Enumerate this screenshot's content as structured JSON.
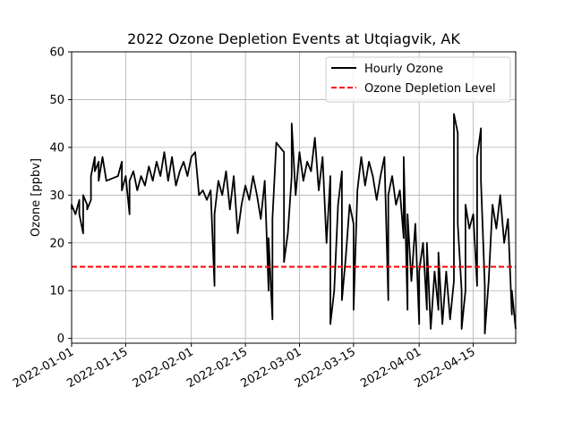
{
  "chart_data": {
    "type": "line",
    "title": "2022 Ozone Depletion Events at Utqiagvik, AK",
    "xlabel": "",
    "ylabel": "Ozone [ppbv]",
    "xlim": [
      "2022-01-01",
      "2022-04-26"
    ],
    "ylim": [
      -1,
      60
    ],
    "x_ticks": [
      "2022-01-01",
      "2022-01-15",
      "2022-02-01",
      "2022-02-15",
      "2022-03-01",
      "2022-03-15",
      "2022-04-01",
      "2022-04-15"
    ],
    "y_ticks": [
      0,
      10,
      20,
      30,
      40,
      50,
      60
    ],
    "grid": true,
    "legend_position": "top-right",
    "series": [
      {
        "name": "Hourly Ozone",
        "style": "solid",
        "color": "#000000",
        "points": [
          [
            "2022-01-01",
            27
          ],
          [
            "2022-01-01",
            28
          ],
          [
            "2022-01-02",
            26
          ],
          [
            "2022-01-03",
            29
          ],
          [
            "2022-01-03",
            26
          ],
          [
            "2022-01-04",
            22
          ],
          [
            "2022-01-04",
            30
          ],
          [
            "2022-01-05",
            28
          ],
          [
            "2022-01-05",
            27
          ],
          [
            "2022-01-06",
            29
          ],
          [
            "2022-01-06",
            34
          ],
          [
            "2022-01-07",
            38
          ],
          [
            "2022-01-07",
            35
          ],
          [
            "2022-01-08",
            37
          ],
          [
            "2022-01-08",
            33
          ],
          [
            "2022-01-09",
            38
          ],
          [
            "2022-01-10",
            33
          ],
          [
            "2022-01-13",
            34
          ],
          [
            "2022-01-14",
            37
          ],
          [
            "2022-01-14",
            31
          ],
          [
            "2022-01-15",
            34
          ],
          [
            "2022-01-16",
            26
          ],
          [
            "2022-01-16",
            33
          ],
          [
            "2022-01-17",
            35
          ],
          [
            "2022-01-18",
            31
          ],
          [
            "2022-01-19",
            34
          ],
          [
            "2022-01-20",
            32
          ],
          [
            "2022-01-21",
            36
          ],
          [
            "2022-01-22",
            33
          ],
          [
            "2022-01-23",
            37
          ],
          [
            "2022-01-24",
            34
          ],
          [
            "2022-01-25",
            39
          ],
          [
            "2022-01-26",
            33
          ],
          [
            "2022-01-27",
            38
          ],
          [
            "2022-01-28",
            32
          ],
          [
            "2022-01-29",
            35
          ],
          [
            "2022-01-30",
            37
          ],
          [
            "2022-01-31",
            34
          ],
          [
            "2022-02-01",
            38
          ],
          [
            "2022-02-02",
            39
          ],
          [
            "2022-02-03",
            30
          ],
          [
            "2022-02-04",
            31
          ],
          [
            "2022-02-05",
            29
          ],
          [
            "2022-02-06",
            31
          ],
          [
            "2022-02-07",
            11
          ],
          [
            "2022-02-07",
            26
          ],
          [
            "2022-02-08",
            33
          ],
          [
            "2022-02-09",
            30
          ],
          [
            "2022-02-10",
            35
          ],
          [
            "2022-02-11",
            27
          ],
          [
            "2022-02-12",
            34
          ],
          [
            "2022-02-13",
            22
          ],
          [
            "2022-02-14",
            28
          ],
          [
            "2022-02-15",
            32
          ],
          [
            "2022-02-16",
            29
          ],
          [
            "2022-02-17",
            34
          ],
          [
            "2022-02-18",
            30
          ],
          [
            "2022-02-19",
            25
          ],
          [
            "2022-02-20",
            33
          ],
          [
            "2022-02-21",
            10
          ],
          [
            "2022-02-21",
            21
          ],
          [
            "2022-02-22",
            4
          ],
          [
            "2022-02-22",
            25
          ],
          [
            "2022-02-23",
            41
          ],
          [
            "2022-02-24",
            40
          ],
          [
            "2022-02-25",
            39
          ],
          [
            "2022-02-25",
            16
          ],
          [
            "2022-02-26",
            22
          ],
          [
            "2022-02-27",
            34
          ],
          [
            "2022-02-27",
            45
          ],
          [
            "2022-02-28",
            30
          ],
          [
            "2022-03-01",
            39
          ],
          [
            "2022-03-02",
            33
          ],
          [
            "2022-03-03",
            37
          ],
          [
            "2022-03-04",
            35
          ],
          [
            "2022-03-05",
            42
          ],
          [
            "2022-03-06",
            31
          ],
          [
            "2022-03-07",
            38
          ],
          [
            "2022-03-08",
            20
          ],
          [
            "2022-03-09",
            34
          ],
          [
            "2022-03-09",
            3
          ],
          [
            "2022-03-10",
            10
          ],
          [
            "2022-03-11",
            28
          ],
          [
            "2022-03-12",
            35
          ],
          [
            "2022-03-12",
            8
          ],
          [
            "2022-03-13",
            17
          ],
          [
            "2022-03-14",
            28
          ],
          [
            "2022-03-15",
            24
          ],
          [
            "2022-03-15",
            6
          ],
          [
            "2022-03-16",
            31
          ],
          [
            "2022-03-17",
            38
          ],
          [
            "2022-03-18",
            32
          ],
          [
            "2022-03-19",
            37
          ],
          [
            "2022-03-20",
            34
          ],
          [
            "2022-03-21",
            29
          ],
          [
            "2022-03-22",
            34
          ],
          [
            "2022-03-23",
            38
          ],
          [
            "2022-03-24",
            8
          ],
          [
            "2022-03-24",
            30
          ],
          [
            "2022-03-25",
            34
          ],
          [
            "2022-03-26",
            28
          ],
          [
            "2022-03-27",
            31
          ],
          [
            "2022-03-28",
            21
          ],
          [
            "2022-03-28",
            38
          ],
          [
            "2022-03-29",
            6
          ],
          [
            "2022-03-29",
            26
          ],
          [
            "2022-03-30",
            12
          ],
          [
            "2022-03-31",
            24
          ],
          [
            "2022-04-01",
            3
          ],
          [
            "2022-04-01",
            14
          ],
          [
            "2022-04-02",
            20
          ],
          [
            "2022-04-03",
            6
          ],
          [
            "2022-04-03",
            20
          ],
          [
            "2022-04-04",
            2
          ],
          [
            "2022-04-05",
            14
          ],
          [
            "2022-04-06",
            6
          ],
          [
            "2022-04-06",
            18
          ],
          [
            "2022-04-07",
            3
          ],
          [
            "2022-04-08",
            14
          ],
          [
            "2022-04-09",
            4
          ],
          [
            "2022-04-10",
            12
          ],
          [
            "2022-04-10",
            47
          ],
          [
            "2022-04-11",
            43
          ],
          [
            "2022-04-11",
            24
          ],
          [
            "2022-04-12",
            10
          ],
          [
            "2022-04-12",
            2
          ],
          [
            "2022-04-13",
            10
          ],
          [
            "2022-04-13",
            28
          ],
          [
            "2022-04-14",
            23
          ],
          [
            "2022-04-15",
            26
          ],
          [
            "2022-04-16",
            11
          ],
          [
            "2022-04-16",
            38
          ],
          [
            "2022-04-17",
            44
          ],
          [
            "2022-04-17",
            33
          ],
          [
            "2022-04-18",
            11
          ],
          [
            "2022-04-18",
            1
          ],
          [
            "2022-04-19",
            12
          ],
          [
            "2022-04-20",
            28
          ],
          [
            "2022-04-21",
            23
          ],
          [
            "2022-04-22",
            30
          ],
          [
            "2022-04-23",
            20
          ],
          [
            "2022-04-24",
            25
          ],
          [
            "2022-04-25",
            5
          ],
          [
            "2022-04-25",
            10
          ],
          [
            "2022-04-26",
            2
          ]
        ]
      },
      {
        "name": "Ozone Depletion Level",
        "style": "dashed",
        "color": "#ff0000",
        "y": 15
      }
    ]
  }
}
